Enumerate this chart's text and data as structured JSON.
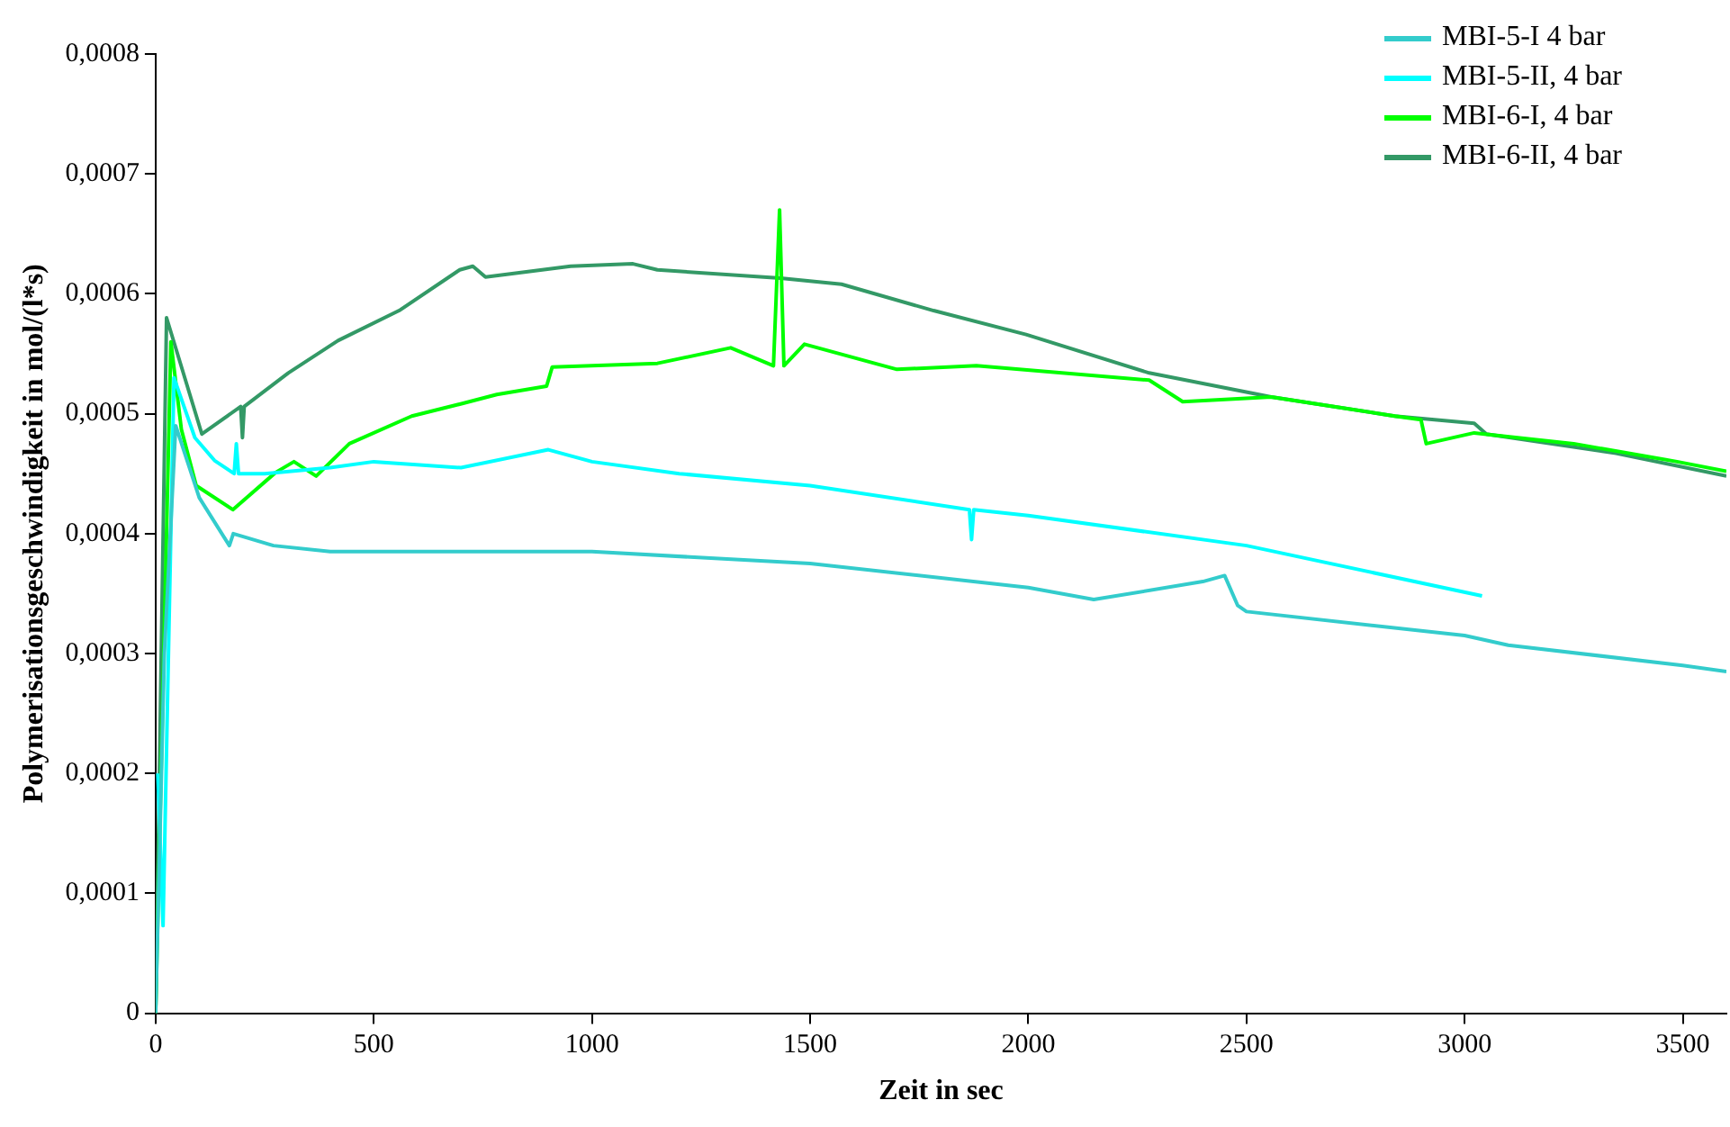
{
  "chart_data": {
    "type": "line",
    "xlabel": "Zeit in sec",
    "ylabel": "Polymerisationsgeschwindigkeit in mol/(l*s)",
    "xlim": [
      0,
      3600
    ],
    "xticks": [
      0,
      500,
      1000,
      1500,
      2000,
      2500,
      3000,
      3500
    ],
    "ylim": [
      0,
      0.0008
    ],
    "yticks": [
      0,
      {
        "value": 0.0001,
        "label": "0,0001"
      },
      {
        "value": 0.0002,
        "label": "0,0002"
      },
      {
        "value": 0.0003,
        "label": "0,0003"
      },
      {
        "value": 0.0004,
        "label": "0,0004"
      },
      {
        "value": 0.0005,
        "label": "0,0005"
      },
      {
        "value": 0.0006,
        "label": "0,0006"
      },
      {
        "value": 0.0007,
        "label": "0,0007"
      },
      {
        "value": 0.0008,
        "label": "0,0008"
      }
    ],
    "grid": false,
    "legend": "top right",
    "marker": "none",
    "line_style": "solid",
    "series": [
      {
        "name": "MBI-5-I 4 bar",
        "color": "#33cccc",
        "x": [
          0,
          20,
          46,
          100,
          169,
          178,
          270,
          400,
          700,
          1000,
          1500,
          2000,
          2150,
          2400,
          2450,
          2480,
          2500,
          3000,
          3100,
          3500,
          3600
        ],
        "values": [
          0,
          0.0003,
          0.00049,
          0.00043,
          0.00039,
          0.0004,
          0.00039,
          0.000385,
          0.000385,
          0.000385,
          0.000375,
          0.000355,
          0.000345,
          0.00036,
          0.000365,
          0.00034,
          0.000335,
          0.000315,
          0.000307,
          0.00029,
          0.000285
        ]
      },
      {
        "name": "MBI-5-II, 4 bar",
        "color": "#00ffff",
        "x": [
          5,
          17,
          42,
          90,
          135,
          180,
          185,
          190,
          250,
          400,
          500,
          700,
          900,
          1000,
          1200,
          1500,
          1865,
          1870,
          1875,
          2000,
          2500,
          3040
        ],
        "values": [
          0.0002,
          7.3e-05,
          0.00053,
          0.00048,
          0.000461,
          0.00045,
          0.000475,
          0.00045,
          0.00045,
          0.000455,
          0.00046,
          0.000455,
          0.00047,
          0.00046,
          0.00045,
          0.00044,
          0.00042,
          0.000395,
          0.00042,
          0.000415,
          0.00039,
          0.000348
        ]
      },
      {
        "name": "MBI-6-I, 4 bar",
        "color": "#00ff00",
        "x": [
          0,
          35,
          59,
          93,
          177,
          275,
          317,
          368,
          444,
          587,
          697,
          782,
          896,
          909,
          1150,
          1318,
          1416,
          1430,
          1440,
          1487,
          1699,
          1881,
          2277,
          2354,
          2557,
          2840,
          2900,
          2912,
          3022,
          3250,
          3487,
          3600
        ],
        "values": [
          0,
          0.00056,
          0.000487,
          0.00044,
          0.00042,
          0.000451,
          0.00046,
          0.000448,
          0.000475,
          0.000498,
          0.000508,
          0.000516,
          0.000523,
          0.000539,
          0.000542,
          0.000555,
          0.00054,
          0.00067,
          0.00054,
          0.000558,
          0.000537,
          0.00054,
          0.000528,
          0.00051,
          0.000514,
          0.000498,
          0.000495,
          0.000475,
          0.000484,
          0.000475,
          0.00046,
          0.000452
        ]
      },
      {
        "name": "MBI-6-II, 4 bar",
        "color": "#339966",
        "x": [
          0,
          25,
          106,
          195,
          199,
          203,
          304,
          418,
          558,
          697,
          727,
          756,
          951,
          1094,
          1150,
          1432,
          1572,
          1783,
          1995,
          2277,
          2557,
          2840,
          3022,
          3050,
          3347,
          3600
        ],
        "values": [
          0,
          0.00058,
          0.000483,
          0.000506,
          0.00048,
          0.000506,
          0.000534,
          0.000561,
          0.000586,
          0.00062,
          0.000623,
          0.000614,
          0.000623,
          0.000625,
          0.00062,
          0.000613,
          0.000608,
          0.000586,
          0.000566,
          0.000534,
          0.000514,
          0.000498,
          0.000492,
          0.000483,
          0.000467,
          0.000448
        ]
      }
    ]
  }
}
